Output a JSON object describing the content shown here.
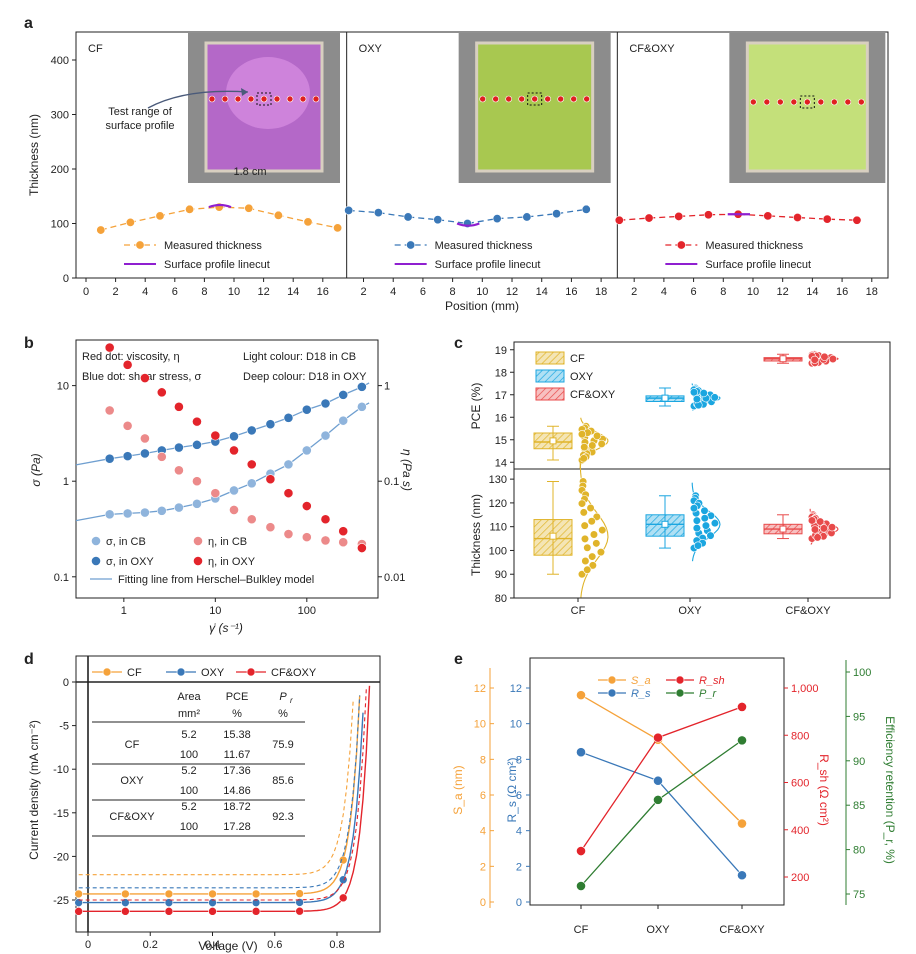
{
  "panels": {
    "a": "a",
    "b": "b",
    "c": "c",
    "d": "d",
    "e": "e"
  },
  "colors": {
    "cf": "#f5a23a",
    "oxy": "#3a78b8",
    "cfoxy": "#e3242b",
    "purple": "#8f1fd0",
    "green": "#2f7d32",
    "light_red": "#ec8a8a",
    "light_blue": "#8fb4dc",
    "cf_box": "#e0b42a",
    "oxy_box": "#1ba6e0",
    "cfoxy_box": "#e84a4a"
  },
  "chart_data": [
    {
      "id": "a",
      "type": "line",
      "ylabel": "Thickness (nm)",
      "xlabel": "Position (mm)",
      "yticks": [
        "0",
        "100",
        "200",
        "300",
        "400"
      ],
      "sub_panels": [
        {
          "label": "CF",
          "xticks": [
            "0",
            "2",
            "4",
            "6",
            "8",
            "10",
            "12",
            "14",
            "16"
          ],
          "x": [
            1,
            3,
            5,
            7,
            9,
            11,
            13,
            15,
            17
          ],
          "thickness": [
            88,
            102,
            114,
            126,
            130,
            128,
            115,
            103,
            92
          ],
          "linecut": {
            "from": 8.3,
            "to": 9.8,
            "peak": 134
          },
          "photo_note": "1.8 cm",
          "annotation": "Test range of\nsurface profile",
          "legend": [
            "Measured thickness",
            "Surface profile linecut"
          ]
        },
        {
          "label": "OXY",
          "xticks": [
            "2",
            "4",
            "6",
            "8",
            "10",
            "12",
            "14",
            "16",
            "18"
          ],
          "x": [
            1,
            3,
            5,
            7,
            9,
            11,
            13,
            15,
            17
          ],
          "thickness": [
            124,
            120,
            112,
            107,
            100,
            109,
            112,
            118,
            126
          ],
          "linecut": {
            "from": 8.3,
            "to": 9.8,
            "peak": 96
          },
          "legend": [
            "Measured thickness",
            "Surface profile linecut"
          ]
        },
        {
          "label": "CF&OXY",
          "xticks": [
            "2",
            "4",
            "6",
            "8",
            "10",
            "12",
            "14",
            "16",
            "18"
          ],
          "x": [
            1,
            3,
            5,
            7,
            9,
            11,
            13,
            15,
            17
          ],
          "thickness": [
            106,
            110,
            113,
            116,
            117,
            114,
            111,
            108,
            106
          ],
          "linecut": {
            "from": 8.3,
            "to": 9.8,
            "peak": 117
          },
          "legend": [
            "Measured thickness",
            "Surface profile linecut"
          ]
        }
      ]
    },
    {
      "id": "b",
      "type": "scatter",
      "xlabel": "γ̇ (s⁻¹)",
      "ylabel_left": "σ (Pa)",
      "ylabel_right": "η (Pa s)",
      "xticks": [
        "1",
        "10",
        "100"
      ],
      "yticks_left": [
        "0.1",
        "1",
        "10"
      ],
      "yticks_right": [
        "0.01",
        "0.1",
        "1"
      ],
      "notes": [
        "Red dot: viscosity, η",
        "Blue dot: shear stress, σ",
        "Light colour: D18 in CB",
        "Deep colour: D18 in OXY"
      ],
      "legend": [
        "σ, in CB",
        "σ, in OXY",
        "η, in CB",
        "η, in OXY",
        "Fitting line from Herschel–Bulkley model"
      ],
      "x": [
        0.7,
        1.1,
        1.7,
        2.6,
        4.0,
        6.3,
        10,
        16,
        25,
        40,
        63,
        100,
        160,
        250,
        400
      ],
      "series": [
        {
          "name": "σ, in CB",
          "values": [
            0.45,
            0.46,
            0.47,
            0.49,
            0.53,
            0.58,
            0.66,
            0.8,
            0.95,
            1.2,
            1.5,
            2.1,
            3.0,
            4.3,
            6.0
          ]
        },
        {
          "name": "σ, in OXY",
          "values": [
            1.72,
            1.83,
            1.95,
            2.1,
            2.25,
            2.4,
            2.6,
            2.95,
            3.4,
            3.95,
            4.6,
            5.6,
            6.5,
            8.0,
            9.7
          ]
        },
        {
          "name": "η, in CB",
          "values": [
            0.55,
            0.38,
            0.28,
            0.18,
            0.13,
            0.1,
            0.075,
            0.05,
            0.04,
            0.033,
            0.028,
            0.026,
            0.024,
            0.023,
            0.022
          ]
        },
        {
          "name": "η, in OXY",
          "values": [
            2.5,
            1.65,
            1.2,
            0.85,
            0.6,
            0.42,
            0.3,
            0.21,
            0.15,
            0.105,
            0.075,
            0.055,
            0.04,
            0.03,
            0.02
          ]
        }
      ]
    },
    {
      "id": "c",
      "type": "box",
      "categories": [
        "CF",
        "OXY",
        "CF&OXY"
      ],
      "legend": [
        "CF",
        "OXY",
        "CF&OXY"
      ],
      "pce": {
        "ylabel": "PCE (%)",
        "yticks": [
          "14",
          "15",
          "16",
          "17",
          "18",
          "19"
        ],
        "boxes": [
          {
            "min": 14.1,
            "q1": 14.6,
            "median": 14.9,
            "q3": 15.3,
            "max": 15.6,
            "mean": 14.95
          },
          {
            "min": 16.5,
            "q1": 16.7,
            "median": 16.85,
            "q3": 16.95,
            "max": 17.3,
            "mean": 16.85
          },
          {
            "min": 18.4,
            "q1": 18.5,
            "median": 18.6,
            "q3": 18.65,
            "max": 18.8,
            "mean": 18.6
          }
        ]
      },
      "thickness": {
        "ylabel": "Thickness (nm)",
        "yticks": [
          "80",
          "90",
          "100",
          "110",
          "120",
          "130"
        ],
        "boxes": [
          {
            "min": 90,
            "q1": 98,
            "median": 105,
            "q3": 113,
            "max": 129,
            "mean": 106
          },
          {
            "min": 101,
            "q1": 106,
            "median": 111,
            "q3": 115,
            "max": 123,
            "mean": 111
          },
          {
            "min": 105,
            "q1": 107,
            "median": 109,
            "q3": 111,
            "max": 115,
            "mean": 109
          }
        ]
      }
    },
    {
      "id": "d",
      "type": "line",
      "xlabel": "Voltage (V)",
      "ylabel": "Current density (mA cm⁻²)",
      "xticks": [
        "0",
        "0.2",
        "0.4",
        "0.6",
        "0.8"
      ],
      "yticks": [
        "0",
        "-5",
        "-10",
        "-15",
        "-20",
        "-25"
      ],
      "legend": [
        "CF",
        "OXY",
        "CF&OXY"
      ],
      "table": {
        "headers": [
          "Area",
          "PCE",
          "P_r"
        ],
        "units": [
          "mm²",
          "%",
          "%"
        ],
        "rows": [
          {
            "name": "CF",
            "area": [
              "5.2",
              "100"
            ],
            "pce": [
              "15.38",
              "11.67"
            ],
            "pr": "75.9"
          },
          {
            "name": "OXY",
            "area": [
              "5.2",
              "100"
            ],
            "pce": [
              "17.36",
              "14.86"
            ],
            "pr": "85.6"
          },
          {
            "name": "CF&OXY",
            "area": [
              "5.2",
              "100"
            ],
            "pce": [
              "18.72",
              "17.28"
            ],
            "pr": "92.3"
          }
        ]
      },
      "series": [
        {
          "name": "CF",
          "jsc": 24.3,
          "voc": 0.875,
          "jsc_dashed": 22.1,
          "voc_dashed": 0.855
        },
        {
          "name": "OXY",
          "jsc": 25.3,
          "voc": 0.888,
          "jsc_dashed": 23.6,
          "voc_dashed": 0.875
        },
        {
          "name": "CF&OXY",
          "jsc": 26.3,
          "voc": 0.905,
          "jsc_dashed": 25.0,
          "voc_dashed": 0.895
        }
      ]
    },
    {
      "id": "e",
      "type": "line",
      "categories": [
        "CF",
        "OXY",
        "CF&OXY"
      ],
      "axes": {
        "sa": {
          "label": "S_a (nm)",
          "ticks": [
            "0",
            "2",
            "4",
            "6",
            "8",
            "10",
            "12"
          ]
        },
        "rs": {
          "label": "R_s (Ω cm²)",
          "ticks": [
            "0",
            "2",
            "4",
            "6",
            "8",
            "10",
            "12"
          ]
        },
        "rsh": {
          "label": "R_sh (Ω cm²)",
          "ticks": [
            "200",
            "400",
            "600",
            "800",
            "1,000"
          ]
        },
        "pr": {
          "label": "Efficiency retention (P_r, %)",
          "ticks": [
            "75",
            "80",
            "85",
            "90",
            "95",
            "100"
          ]
        }
      },
      "legend": [
        "S_a",
        "R_sh",
        "R_s",
        "P_r"
      ],
      "series": [
        {
          "name": "S_a",
          "values": [
            11.6,
            9.1,
            4.4
          ]
        },
        {
          "name": "R_s",
          "values": [
            8.4,
            6.8,
            1.5
          ]
        },
        {
          "name": "R_sh",
          "values": [
            310,
            790,
            920
          ]
        },
        {
          "name": "P_r",
          "values": [
            75.9,
            85.6,
            92.3
          ]
        }
      ]
    }
  ]
}
